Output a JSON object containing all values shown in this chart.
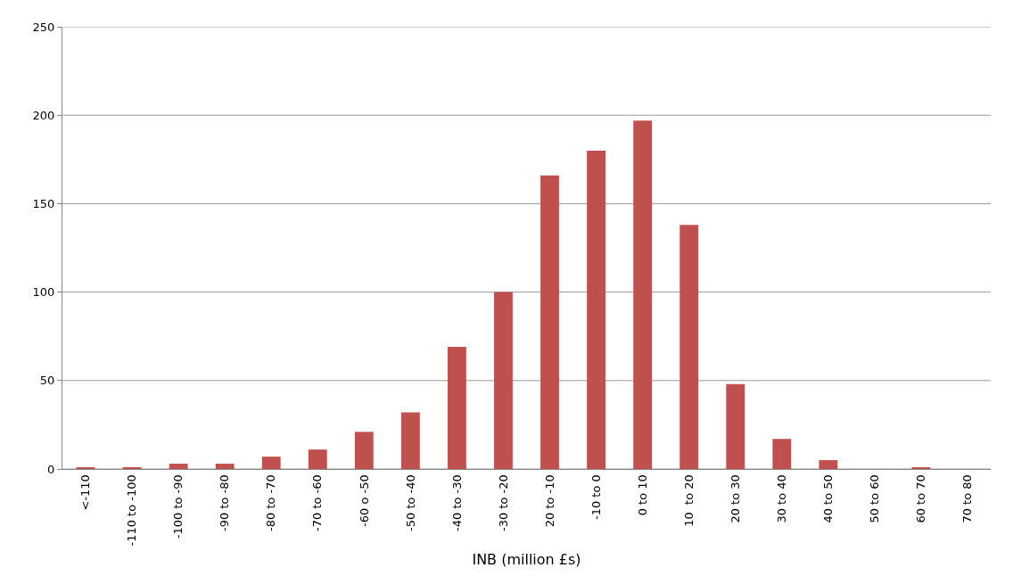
{
  "chart_data": {
    "type": "bar",
    "xlabel": "INB (million £s)",
    "categories": [
      "<-110",
      "-110 to -100",
      "-100 to -90",
      "-90 to -80",
      "-80 to -70",
      "-70 to -60",
      "-60 o -50",
      "-50 to -40",
      "-40 to -30",
      "-30 to -20",
      "20 to -10",
      "-10 to 0",
      "0 to 10",
      "10  to 20",
      "20 to 30",
      "30 to 40",
      "40 to 50",
      "50 to 60",
      "60 to 70",
      "70 to 80"
    ],
    "values": [
      1,
      1,
      3,
      3,
      7,
      11,
      21,
      32,
      69,
      100,
      166,
      180,
      197,
      138,
      48,
      17,
      5,
      0,
      1,
      0
    ],
    "color": "#c0504d",
    "ylim": [
      0,
      250
    ],
    "yticks": [
      0,
      50,
      100,
      150,
      200,
      250
    ],
    "grid": "y"
  }
}
